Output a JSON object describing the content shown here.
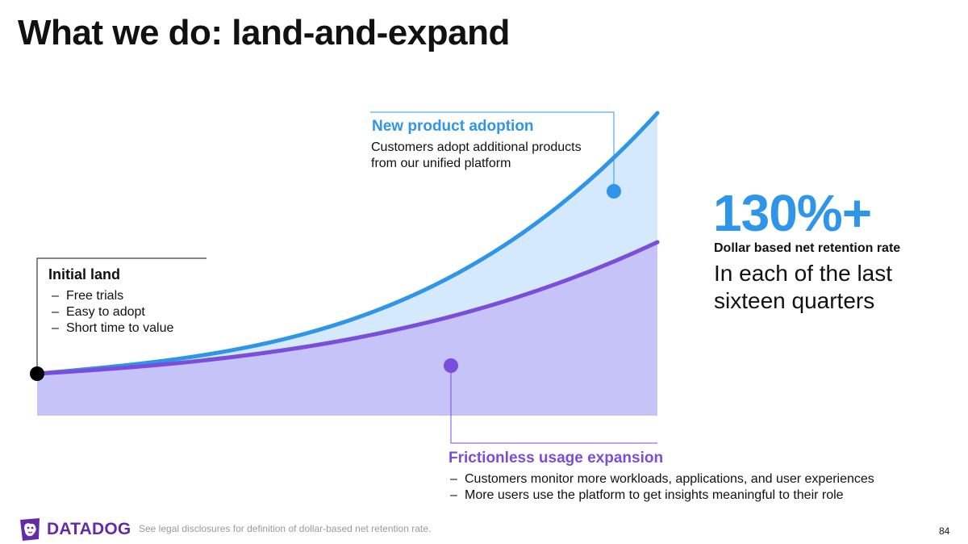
{
  "slide": {
    "title": "What we do: land-and-expand",
    "page_number": "84"
  },
  "initial_land": {
    "heading": "Initial land",
    "items": [
      "Free trials",
      "Easy to adopt",
      "Short time to value"
    ]
  },
  "new_product": {
    "heading": "New product adoption",
    "description": "Customers adopt additional products from our unified platform"
  },
  "frictionless": {
    "heading": "Frictionless usage expansion",
    "items": [
      "Customers monitor more workloads, applications, and user experiences",
      "More users use the platform to get insights meaningful to their role"
    ]
  },
  "stat": {
    "value": "130%+",
    "label": "Dollar based net retention rate",
    "description": "In each of the last sixteen quarters"
  },
  "footer": {
    "logo_text": "DATADOG",
    "disclaimer": "See legal disclosures for definition of dollar-based net retention rate."
  },
  "colors": {
    "blue": "#2f95e8",
    "light_blue": "#d4e9fb",
    "purple": "#7a4ddb",
    "lavender": "#c5c3f8",
    "datadog_purple": "#632ca6"
  }
}
